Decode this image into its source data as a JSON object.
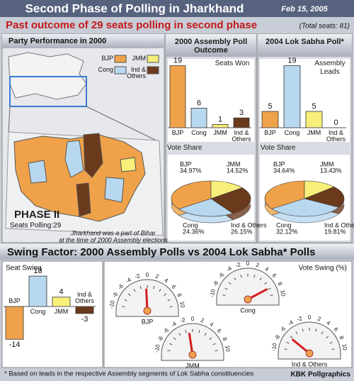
{
  "header": {
    "title": "Second Phase of Polling in Jharkhand",
    "date": "Feb 15, 2005",
    "subtitle": "Past outcome of 29 seats polling in second phase",
    "total": "(Total seats: 81)"
  },
  "map": {
    "title": "Party Performance in 2000",
    "phase": "PHASE II",
    "seats": "Seats Polling:29",
    "note": [
      "Jharkhand was a part of Bihar",
      "at the time of 2000 Assembly elections"
    ],
    "legend": [
      {
        "name": "BJP",
        "color": "#f0a24a"
      },
      {
        "name": "JMM",
        "color": "#f7ef7a"
      },
      {
        "name": "Cong",
        "color": "#b8d8ef"
      },
      {
        "name": "Ind & Others",
        "color": "#6b3a1c"
      }
    ]
  },
  "chart_data": [
    {
      "type": "bar",
      "title": "2000 Assembly Poll Outcome",
      "subtitle": "Seats Won",
      "categories": [
        "BJP",
        "Cong",
        "JMM",
        "Ind & Others"
      ],
      "values": [
        19,
        6,
        1,
        3
      ],
      "colors": [
        "#f0a24a",
        "#b8d8ef",
        "#f7ef7a",
        "#6b3a1c"
      ]
    },
    {
      "type": "pie",
      "title": "Vote Share",
      "categories": [
        "BJP",
        "JMM",
        "Ind & Others",
        "Cong"
      ],
      "values": [
        34.97,
        14.52,
        26.15,
        24.36
      ],
      "value_labels": [
        "34.97%",
        "14.52%",
        "26.15%",
        "24.36%"
      ],
      "colors": [
        "#f0a24a",
        "#f7ef7a",
        "#6b3a1c",
        "#b8d8ef"
      ]
    },
    {
      "type": "bar",
      "title": "2004 Lok Sabha Poll*",
      "subtitle": "Assembly Leads",
      "categories": [
        "BJP",
        "Cong",
        "JMM",
        "Ind & Others"
      ],
      "values": [
        5,
        19,
        5,
        0
      ],
      "colors": [
        "#f0a24a",
        "#b8d8ef",
        "#f7ef7a",
        "#6b3a1c"
      ]
    },
    {
      "type": "pie",
      "title": "Vote Share",
      "categories": [
        "BJP",
        "JMM",
        "Ind & Others",
        "Cong"
      ],
      "values": [
        34.64,
        13.43,
        19.81,
        32.12
      ],
      "value_labels": [
        "34.64%",
        "13.43%",
        "19.81%",
        "32.12%"
      ],
      "colors": [
        "#f0a24a",
        "#f7ef7a",
        "#6b3a1c",
        "#b8d8ef"
      ]
    },
    {
      "type": "bar",
      "title": "Seat Swing",
      "categories": [
        "BJP",
        "Cong",
        "JMM",
        "Ind & Others"
      ],
      "values": [
        -14,
        13,
        4,
        -3
      ],
      "colors": [
        "#f0a24a",
        "#b8d8ef",
        "#f7ef7a",
        "#6b3a1c"
      ]
    },
    {
      "type": "gauge",
      "title": "Vote Swing (%)",
      "categories": [
        "BJP",
        "Cong",
        "JMM",
        "Ind & Others"
      ],
      "values": [
        -0.33,
        7.76,
        -1.09,
        -6.34
      ],
      "xlim": [
        -10,
        10
      ],
      "xticks": [
        -10,
        -8,
        -6,
        -4,
        -2,
        0,
        2,
        4,
        6,
        8,
        10
      ]
    }
  ],
  "swing_title": "Swing Factor: 2000 Assembly Polls vs 2004 Lok Sabha* Polls",
  "footer": {
    "note": "* Based on leads in the respective Assembly segments of Lok Sabha constituencies",
    "credit": "KBK Pollgraphics"
  }
}
